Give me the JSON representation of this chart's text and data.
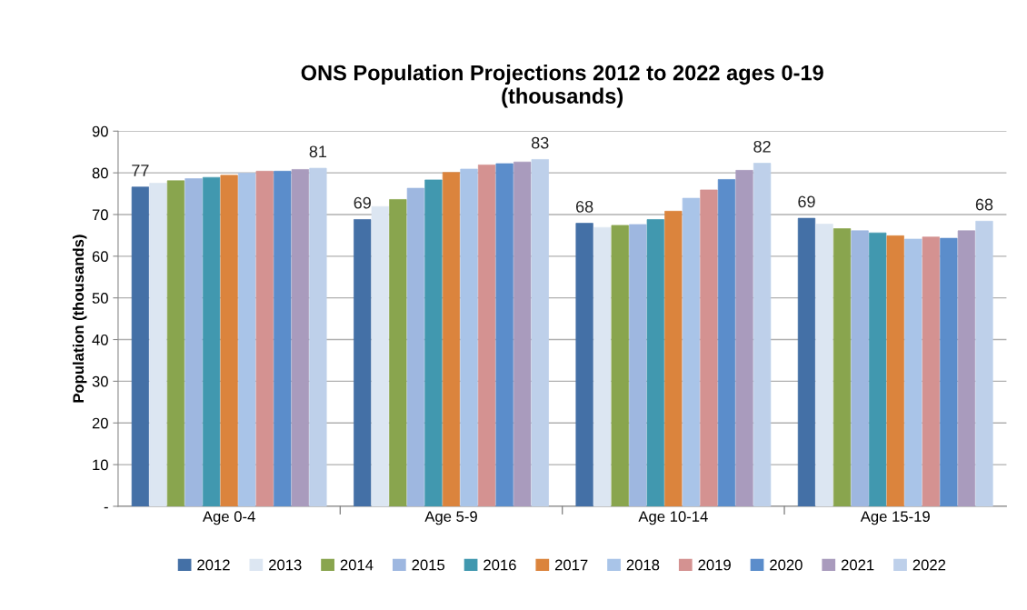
{
  "chart_data": {
    "type": "bar",
    "title": "ONS Population Projections 2012 to 2022 ages 0-19\n(thousands)",
    "ylabel": "Population (thousands)",
    "categories": [
      "Age 0-4",
      "Age 5-9",
      "Age 10-14",
      "Age 15-19"
    ],
    "series": [
      {
        "name": "2012",
        "color": "#4470a6",
        "values": [
          76.6,
          68.8,
          67.9,
          69.1
        ],
        "value_labels": [
          "77",
          "69",
          "68",
          "69"
        ]
      },
      {
        "name": "2013",
        "color": "#dce6f2",
        "values": [
          77.5,
          71.9,
          66.9,
          67.7
        ]
      },
      {
        "name": "2014",
        "color": "#89a54e",
        "values": [
          78.1,
          73.6,
          67.4,
          66.6
        ]
      },
      {
        "name": "2015",
        "color": "#9eb7e0",
        "values": [
          78.6,
          76.3,
          67.6,
          66.1
        ]
      },
      {
        "name": "2016",
        "color": "#4198af",
        "values": [
          78.9,
          78.3,
          68.8,
          65.6
        ]
      },
      {
        "name": "2017",
        "color": "#db843d",
        "values": [
          79.4,
          80.1,
          70.8,
          64.9
        ]
      },
      {
        "name": "2018",
        "color": "#a9c4e8",
        "values": [
          79.9,
          80.9,
          73.9,
          64.1
        ]
      },
      {
        "name": "2019",
        "color": "#d49291",
        "values": [
          80.4,
          81.9,
          75.9,
          64.6
        ]
      },
      {
        "name": "2020",
        "color": "#5b8dcb",
        "values": [
          80.4,
          82.2,
          78.4,
          64.3
        ]
      },
      {
        "name": "2021",
        "color": "#a99bbd",
        "values": [
          80.8,
          82.6,
          80.6,
          66.1
        ]
      },
      {
        "name": "2022",
        "color": "#bed0ea",
        "values": [
          81.1,
          83.2,
          82.3,
          68.4
        ],
        "value_labels": [
          "81",
          "83",
          "82",
          "68"
        ]
      }
    ],
    "ylim": [
      0,
      90
    ],
    "yticks": [
      {
        "value": 0,
        "label": "-"
      },
      10,
      20,
      30,
      40,
      50,
      60,
      70,
      80,
      90
    ],
    "grid": "y",
    "legend": "bottom"
  }
}
